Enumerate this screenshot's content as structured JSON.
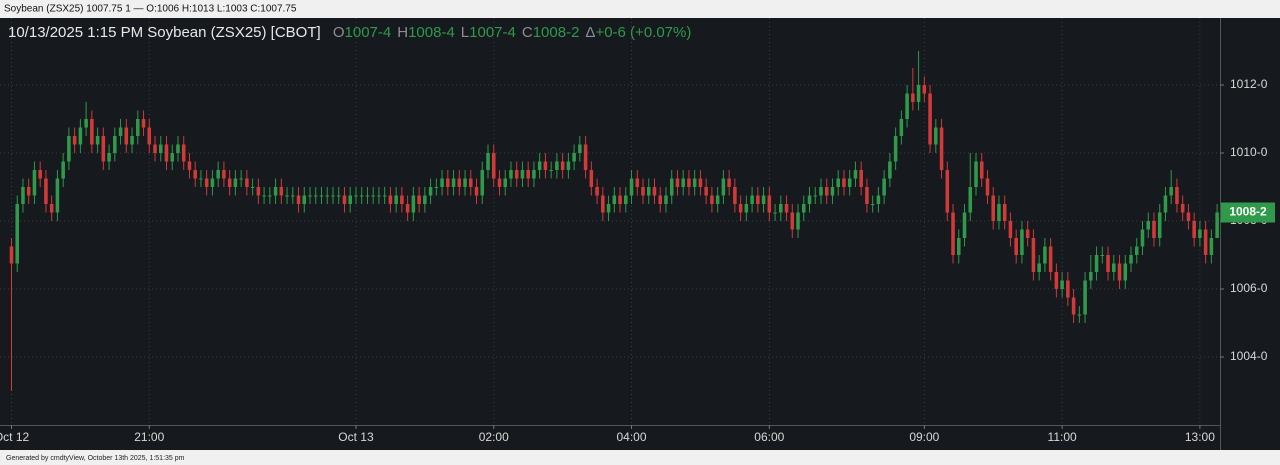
{
  "window_title": "Soybean (ZSX25) 1007.75 1 — O:1006 H:1013 L:1003 C:1007.75",
  "footer": "Generated by cmdtyView, October 13th 2025, 1:51:35 pm",
  "chart_data": {
    "type": "candlestick",
    "title": "10/13/2025  1:15 PM Soybean (ZSX25) [CBOT]",
    "ohlc_header": [
      {
        "key": "O",
        "text": "1007-4"
      },
      {
        "key": "H",
        "text": "1008-4"
      },
      {
        "key": "L",
        "text": "1007-4"
      },
      {
        "key": "C",
        "text": "1008-2"
      },
      {
        "key": "Δ",
        "text": "+0-6 (+0.07%)"
      }
    ],
    "up_color": "#2e9a4a",
    "down_color": "#d23a3a",
    "grid": true,
    "last_price": {
      "value": 1008.25,
      "label": "1008-2"
    },
    "xlim": [
      -2,
      210.5
    ],
    "xticks": [
      {
        "value": 0,
        "label": "Oct 12"
      },
      {
        "value": 24,
        "label": "21:00"
      },
      {
        "value": 60,
        "label": "Oct 13"
      },
      {
        "value": 84,
        "label": "02:00"
      },
      {
        "value": 108,
        "label": "04:00"
      },
      {
        "value": 132,
        "label": "06:00"
      },
      {
        "value": 159,
        "label": "09:00"
      },
      {
        "value": 183,
        "label": "11:00"
      },
      {
        "value": 207,
        "label": "13:00"
      }
    ],
    "ylim": [
      1002,
      1014
    ],
    "yticks": [
      {
        "value": 1004,
        "label": "1004-0"
      },
      {
        "value": 1006,
        "label": "1006-0"
      },
      {
        "value": 1008,
        "label": "1008-0"
      },
      {
        "value": 1010,
        "label": "1010-0"
      },
      {
        "value": 1012,
        "label": "1012-0"
      }
    ],
    "open": [
      1007.25,
      1006.75,
      1008.5,
      1009,
      1008.75,
      1009.5,
      1009.25,
      1008.5,
      1008.25,
      1009.25,
      1009.75,
      1010.5,
      1010.25,
      1010.75,
      1011,
      1010.25,
      1010.5,
      1009.75,
      1010,
      1010.5,
      1010.75,
      1010.25,
      1010.5,
      1011,
      1010.75,
      1010.25,
      1010,
      1010.25,
      1009.75,
      1010,
      1010.25,
      1009.75,
      1009.5,
      1009.25,
      1009.25,
      1009,
      1009.25,
      1009.5,
      1009.25,
      1009,
      1009.25,
      1009.25,
      1009,
      1009,
      1008.75,
      1008.75,
      1008.75,
      1009,
      1008.75,
      1008.75,
      1008.75,
      1008.5,
      1008.75,
      1008.75,
      1008.75,
      1008.75,
      1008.75,
      1008.75,
      1008.75,
      1008.5,
      1008.75,
      1008.75,
      1008.75,
      1008.75,
      1008.75,
      1008.75,
      1008.75,
      1008.5,
      1008.75,
      1008.5,
      1008.25,
      1008.75,
      1008.5,
      1008.75,
      1009,
      1009,
      1009.25,
      1009,
      1009.25,
      1009,
      1009.25,
      1009,
      1008.75,
      1009.5,
      1010,
      1009.25,
      1009,
      1009.25,
      1009.5,
      1009.25,
      1009.5,
      1009.25,
      1009.5,
      1009.75,
      1009.5,
      1009.5,
      1009.75,
      1009.5,
      1009.75,
      1010,
      1010.25,
      1009.5,
      1009,
      1008.75,
      1008.25,
      1008.5,
      1008.75,
      1008.5,
      1008.75,
      1009.25,
      1009,
      1008.75,
      1009,
      1008.75,
      1008.5,
      1008.75,
      1009.25,
      1009,
      1009.25,
      1009,
      1009.25,
      1009,
      1008.75,
      1008.5,
      1008.75,
      1009.25,
      1009,
      1008.5,
      1008.25,
      1008.5,
      1008.75,
      1008.5,
      1008.75,
      1008.25,
      1008.25,
      1008.5,
      1008.25,
      1007.75,
      1008.25,
      1008.5,
      1008.75,
      1008.75,
      1009,
      1008.75,
      1009,
      1009.25,
      1009,
      1009.25,
      1009.5,
      1009,
      1008.5,
      1008.5,
      1008.75,
      1009.25,
      1009.75,
      1010.5,
      1011,
      1011.75,
      1011.5,
      1012,
      1011.75,
      1010.25,
      1010.75,
      1009.5,
      1008.25,
      1007,
      1007.5,
      1008.25,
      1009,
      1009.75,
      1009.25,
      1008.75,
      1008,
      1008.5,
      1008,
      1007.5,
      1007,
      1007.75,
      1007.5,
      1006.5,
      1006.75,
      1007.25,
      1006.5,
      1006,
      1006.25,
      1005.75,
      1005.25,
      1005.25,
      1006.25,
      1006.5,
      1007,
      1007,
      1006.5,
      1006.75,
      1006.25,
      1006.75,
      1007,
      1007.25,
      1007.75,
      1008,
      1007.5,
      1008.25,
      1008.75,
      1009,
      1008.5,
      1008.25,
      1008,
      1007.5,
      1007.75,
      1007,
      1007.5
    ],
    "high": [
      1007.5,
      1008.75,
      1009.25,
      1009.25,
      1009.75,
      1009.75,
      1009.5,
      1008.75,
      1009.5,
      1010,
      1010.75,
      1010.75,
      1011,
      1011.5,
      1011.25,
      1010.75,
      1010.75,
      1010.25,
      1010.75,
      1011,
      1011,
      1010.75,
      1011.25,
      1011.25,
      1011,
      1010.5,
      1010.5,
      1010.5,
      1010.25,
      1010.5,
      1010.5,
      1010,
      1009.75,
      1009.5,
      1009.5,
      1009.5,
      1009.75,
      1009.75,
      1009.5,
      1009.5,
      1009.5,
      1009.5,
      1009.25,
      1009.25,
      1009,
      1009,
      1009.25,
      1009.25,
      1009,
      1009,
      1009,
      1009,
      1009,
      1009,
      1009,
      1009,
      1009,
      1009,
      1009,
      1009,
      1009,
      1009,
      1009,
      1009,
      1009,
      1009,
      1009,
      1009,
      1009,
      1008.75,
      1009,
      1009,
      1009,
      1009.25,
      1009.25,
      1009.5,
      1009.5,
      1009.5,
      1009.5,
      1009.5,
      1009.5,
      1009.25,
      1009.75,
      1010.25,
      1010.25,
      1009.5,
      1009.5,
      1009.75,
      1009.75,
      1009.75,
      1009.75,
      1009.75,
      1010,
      1010,
      1009.75,
      1010,
      1010,
      1010,
      1010.25,
      1010.5,
      1010.5,
      1009.75,
      1009.25,
      1009,
      1008.75,
      1009,
      1009,
      1009,
      1009.5,
      1009.5,
      1009.25,
      1009.25,
      1009.25,
      1009,
      1009,
      1009.5,
      1009.5,
      1009.5,
      1009.5,
      1009.5,
      1009.5,
      1009.25,
      1009,
      1009,
      1009.5,
      1009.5,
      1009.25,
      1008.75,
      1008.75,
      1009,
      1009,
      1009,
      1009,
      1008.5,
      1008.75,
      1008.75,
      1008.5,
      1008.5,
      1008.75,
      1009,
      1009,
      1009.25,
      1009.25,
      1009.25,
      1009.5,
      1009.5,
      1009.5,
      1009.75,
      1009.75,
      1009.25,
      1008.75,
      1009,
      1009.5,
      1010,
      1010.75,
      1011.25,
      1012,
      1012.5,
      1013,
      1012.25,
      1012,
      1011,
      1011,
      1009.75,
      1008.5,
      1007.75,
      1008.5,
      1010,
      1010,
      1010,
      1009.5,
      1009,
      1008.75,
      1008.75,
      1008.25,
      1007.75,
      1008,
      1008,
      1007.75,
      1007,
      1007.5,
      1007.5,
      1006.75,
      1006.5,
      1006.5,
      1006,
      1005.5,
      1006.5,
      1007,
      1007.25,
      1007.25,
      1007.25,
      1007,
      1007,
      1007,
      1007.25,
      1007.5,
      1008,
      1008.25,
      1008.25,
      1008.5,
      1009,
      1009.5,
      1009.25,
      1008.75,
      1008.5,
      1008.25,
      1008,
      1008,
      1007.75,
      1008.5
    ],
    "low": [
      1003,
      1006.5,
      1008.25,
      1008.5,
      1008.5,
      1009,
      1008.25,
      1008,
      1008,
      1009,
      1009.5,
      1010,
      1010,
      1010.5,
      1010,
      1010,
      1009.5,
      1009.5,
      1009.75,
      1010.25,
      1010,
      1010,
      1010.25,
      1010.5,
      1010,
      1009.75,
      1009.75,
      1009.5,
      1009.5,
      1009.75,
      1009.5,
      1009.25,
      1009,
      1009,
      1008.75,
      1008.75,
      1009,
      1009,
      1008.75,
      1008.75,
      1009,
      1008.75,
      1008.75,
      1008.5,
      1008.5,
      1008.5,
      1008.5,
      1008.5,
      1008.5,
      1008.5,
      1008.25,
      1008.25,
      1008.5,
      1008.5,
      1008.5,
      1008.5,
      1008.5,
      1008.5,
      1008.25,
      1008.25,
      1008.5,
      1008.5,
      1008.5,
      1008.5,
      1008.5,
      1008.5,
      1008.25,
      1008.25,
      1008.25,
      1008,
      1008,
      1008.25,
      1008.25,
      1008.5,
      1008.75,
      1008.75,
      1008.75,
      1008.75,
      1008.75,
      1008.75,
      1008.75,
      1008.5,
      1008.5,
      1009.25,
      1009,
      1008.75,
      1008.75,
      1009,
      1009,
      1009,
      1009,
      1009,
      1009.25,
      1009.25,
      1009.25,
      1009.25,
      1009.25,
      1009.25,
      1009.5,
      1009.75,
      1009.25,
      1008.75,
      1008.5,
      1008,
      1008,
      1008.25,
      1008.25,
      1008.25,
      1008.5,
      1008.75,
      1008.5,
      1008.5,
      1008.5,
      1008.25,
      1008.25,
      1008.5,
      1008.75,
      1008.75,
      1008.75,
      1008.75,
      1008.75,
      1008.5,
      1008.25,
      1008.25,
      1008.5,
      1008.75,
      1008.25,
      1008,
      1008,
      1008.25,
      1008.25,
      1008.25,
      1008,
      1008,
      1008,
      1008,
      1007.5,
      1007.5,
      1008,
      1008.25,
      1008.5,
      1008.5,
      1008.5,
      1008.5,
      1008.75,
      1008.75,
      1008.75,
      1009,
      1008.75,
      1008.25,
      1008.25,
      1008.25,
      1008.5,
      1009,
      1009.5,
      1010.25,
      1010.75,
      1011.25,
      1011.25,
      1011.5,
      1010,
      1010,
      1009.25,
      1008,
      1006.75,
      1006.75,
      1007.25,
      1008,
      1008.75,
      1009,
      1008.5,
      1007.75,
      1007.75,
      1007.75,
      1007.25,
      1006.75,
      1006.75,
      1007.25,
      1006.25,
      1006.25,
      1006.5,
      1006.25,
      1005.75,
      1005.75,
      1005.5,
      1005,
      1005,
      1005,
      1006,
      1006.25,
      1006.75,
      1006.25,
      1006.25,
      1006,
      1006,
      1006.5,
      1006.75,
      1007,
      1007.5,
      1007.25,
      1007.25,
      1008,
      1008.5,
      1008.25,
      1008,
      1007.75,
      1007.25,
      1007.25,
      1006.75,
      1006.75,
      1007.5
    ],
    "close": [
      1006.75,
      1008.5,
      1009,
      1008.75,
      1009.5,
      1009.25,
      1008.5,
      1008.25,
      1009.25,
      1009.75,
      1010.5,
      1010.25,
      1010.75,
      1011,
      1010.25,
      1010.5,
      1009.75,
      1010,
      1010.5,
      1010.75,
      1010.25,
      1010.5,
      1011,
      1010.75,
      1010.25,
      1010,
      1010.25,
      1009.75,
      1010,
      1010.25,
      1009.75,
      1009.5,
      1009.25,
      1009.25,
      1009,
      1009.25,
      1009.5,
      1009.25,
      1009,
      1009.25,
      1009.25,
      1009,
      1009,
      1008.75,
      1008.75,
      1008.75,
      1009,
      1008.75,
      1008.75,
      1008.75,
      1008.5,
      1008.75,
      1008.75,
      1008.75,
      1008.75,
      1008.75,
      1008.75,
      1008.75,
      1008.5,
      1008.75,
      1008.75,
      1008.75,
      1008.75,
      1008.75,
      1008.75,
      1008.75,
      1008.5,
      1008.75,
      1008.5,
      1008.25,
      1008.75,
      1008.5,
      1008.75,
      1009,
      1009,
      1009.25,
      1009,
      1009.25,
      1009,
      1009.25,
      1009,
      1008.75,
      1009.5,
      1010,
      1009.25,
      1009,
      1009.25,
      1009.5,
      1009.25,
      1009.5,
      1009.25,
      1009.5,
      1009.75,
      1009.5,
      1009.5,
      1009.75,
      1009.5,
      1009.75,
      1010,
      1010.25,
      1009.5,
      1009,
      1008.75,
      1008.25,
      1008.5,
      1008.75,
      1008.5,
      1008.75,
      1009.25,
      1009,
      1008.75,
      1009,
      1008.75,
      1008.5,
      1008.75,
      1009.25,
      1009,
      1009.25,
      1009,
      1009.25,
      1009,
      1008.75,
      1008.5,
      1008.75,
      1009.25,
      1009,
      1008.5,
      1008.25,
      1008.5,
      1008.75,
      1008.5,
      1008.75,
      1008.25,
      1008.25,
      1008.5,
      1008.25,
      1007.75,
      1008.25,
      1008.5,
      1008.75,
      1008.75,
      1009,
      1008.75,
      1009,
      1009.25,
      1009,
      1009.25,
      1009.5,
      1009,
      1008.5,
      1008.5,
      1008.75,
      1009.25,
      1009.75,
      1010.5,
      1011,
      1011.75,
      1011.5,
      1012,
      1011.75,
      1010.25,
      1010.75,
      1009.5,
      1008.25,
      1007,
      1007.5,
      1008.25,
      1009,
      1009.75,
      1009.25,
      1008.75,
      1008,
      1008.5,
      1008,
      1007.5,
      1007,
      1007.75,
      1007.5,
      1006.5,
      1006.75,
      1007.25,
      1006.5,
      1006,
      1006.25,
      1005.75,
      1005.25,
      1005.25,
      1006.25,
      1006.5,
      1007,
      1007,
      1006.5,
      1006.75,
      1006.25,
      1006.75,
      1007,
      1007.25,
      1007.75,
      1008,
      1007.5,
      1008.25,
      1008.75,
      1009,
      1008.5,
      1008.25,
      1008,
      1007.5,
      1007.75,
      1007,
      1007.5,
      1008.25
    ]
  }
}
